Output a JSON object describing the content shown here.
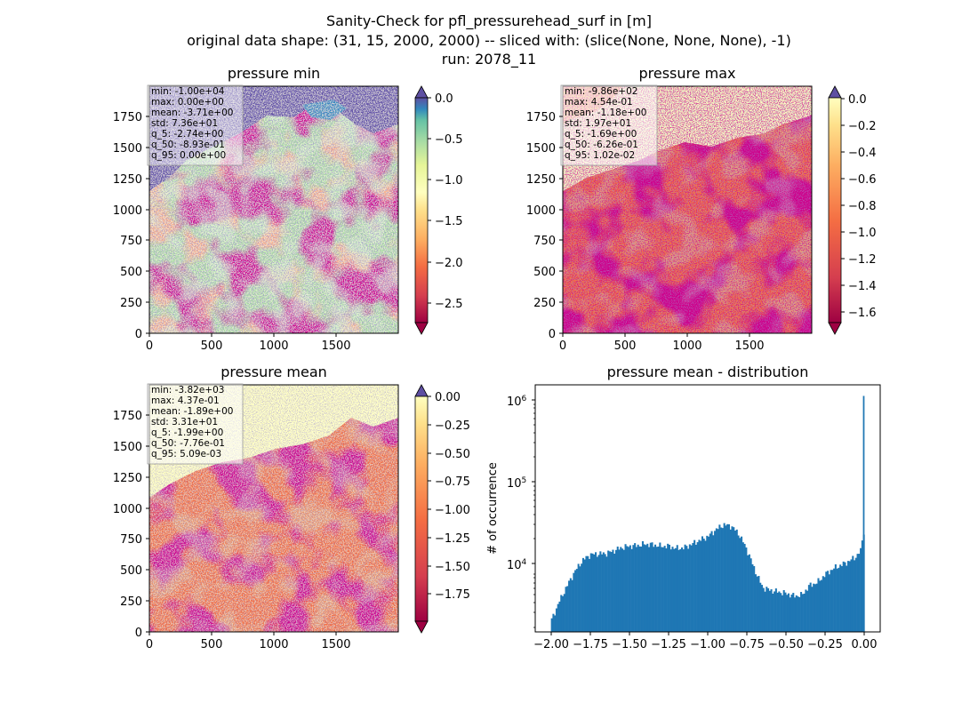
{
  "figure": {
    "title_lines": [
      "Sanity-Check for pfl_pressurehead_surf in [m]",
      "original data shape: (31, 15, 2000, 2000) -- sliced with: (slice(None, None, None), -1)",
      "run: 2078_11"
    ]
  },
  "colors": {
    "red": "#9e0142",
    "orange": "#f46d43",
    "yellow": "#ffffbf",
    "green": "#abdda4",
    "blue": "#3288bd",
    "purple": "#5e4fa2",
    "hist": "#1f77b4"
  },
  "panels": {
    "min": {
      "title": "pressure min",
      "xticks": [
        "0",
        "500",
        "1000",
        "1500"
      ],
      "yticks": [
        "0",
        "250",
        "500",
        "750",
        "1000",
        "1250",
        "1500",
        "1750"
      ],
      "stats": [
        "min: -1.00e+04",
        "max: 0.00e+00",
        "mean: -3.71e+00",
        "std: 7.36e+01",
        "q_5: -2.74e+00",
        "q_50: -8.93e-01",
        "q_95: 0.00e+00"
      ],
      "colorbar": {
        "ticks": [
          "0.0",
          "−0.5",
          "−1.0",
          "−1.5",
          "−2.0",
          "−2.5"
        ],
        "range": [
          -2.74,
          0.0
        ],
        "extend": "both"
      }
    },
    "max": {
      "title": "pressure max",
      "xticks": [
        "0",
        "500",
        "1000",
        "1500"
      ],
      "yticks": [
        "0",
        "250",
        "500",
        "750",
        "1000",
        "1250",
        "1500",
        "1750"
      ],
      "stats": [
        "min: -9.86e+02",
        "max: 4.54e-01",
        "mean: -1.18e+00",
        "std: 1.97e+01",
        "q_5: -1.69e+00",
        "q_50: -6.26e-01",
        "q_95: 1.02e-02"
      ],
      "colorbar": {
        "ticks": [
          "0.0",
          "−0.2",
          "−0.4",
          "−0.6",
          "−0.8",
          "−1.0",
          "−1.2",
          "−1.4",
          "−1.6"
        ],
        "range": [
          -1.69,
          0.0
        ],
        "extend": "both"
      }
    },
    "mean": {
      "title": "pressure mean",
      "xticks": [
        "0",
        "500",
        "1000",
        "1500"
      ],
      "yticks": [
        "0",
        "250",
        "500",
        "750",
        "1000",
        "1250",
        "1500",
        "1750"
      ],
      "stats": [
        "min: -3.82e+03",
        "max: 4.37e-01",
        "mean: -1.89e+00",
        "std: 3.31e+01",
        "q_5: -1.99e+00",
        "q_50: -7.76e-01",
        "q_95: 5.09e-03"
      ],
      "colorbar": {
        "ticks": [
          "0.00",
          "−0.25",
          "−0.50",
          "−0.75",
          "−1.00",
          "−1.25",
          "−1.50",
          "−1.75"
        ],
        "range": [
          -1.99,
          0.0
        ],
        "extend": "both"
      }
    },
    "hist": {
      "title": "pressure mean - distribution",
      "ylabel": "# of occurrence",
      "xtick_labels": [
        "−2.00",
        "−1.75",
        "−1.50",
        "−1.25",
        "−1.00",
        "−0.75",
        "−0.50",
        "−0.25",
        "0.00"
      ],
      "ytick_labels": {
        "1e4": "10^4",
        "1e5": "10^5",
        "1e6": "10^6"
      }
    }
  },
  "chart_data": [
    {
      "type": "heatmap",
      "title": "pressure min",
      "xlim": [
        0,
        2000
      ],
      "ylim": [
        0,
        2000
      ],
      "colormap": "Spectral",
      "clim": [
        -2.74,
        0.0
      ]
    },
    {
      "type": "heatmap",
      "title": "pressure max",
      "xlim": [
        0,
        2000
      ],
      "ylim": [
        0,
        2000
      ],
      "colormap": "Spectral",
      "clim": [
        -1.69,
        0.0
      ]
    },
    {
      "type": "heatmap",
      "title": "pressure mean",
      "xlim": [
        0,
        2000
      ],
      "ylim": [
        0,
        2000
      ],
      "colormap": "Spectral",
      "clim": [
        -1.99,
        0.0
      ]
    },
    {
      "type": "bar",
      "title": "pressure mean - distribution",
      "xlabel": "",
      "ylabel": "# of occurrence",
      "yscale": "log",
      "xlim": [
        -2.1,
        0.1
      ],
      "ylim": [
        1500,
        1500000
      ],
      "bin_width": 0.01,
      "bin_start": -2.0,
      "knots_x": [
        -2.0,
        -1.95,
        -1.9,
        -1.85,
        -1.8,
        -1.75,
        -1.7,
        -1.65,
        -1.6,
        -1.55,
        -1.5,
        -1.45,
        -1.4,
        -1.35,
        -1.3,
        -1.25,
        -1.2,
        -1.15,
        -1.1,
        -1.05,
        -1.0,
        -0.95,
        -0.9,
        -0.85,
        -0.8,
        -0.75,
        -0.7,
        -0.65,
        -0.6,
        -0.55,
        -0.5,
        -0.45,
        -0.4,
        -0.35,
        -0.3,
        -0.25,
        -0.2,
        -0.15,
        -0.1,
        -0.05,
        -0.02,
        -0.01
      ],
      "knots_y": [
        2000,
        3400,
        5300,
        8000,
        11000,
        13000,
        13300,
        13400,
        14500,
        15800,
        16500,
        16800,
        17500,
        17200,
        16500,
        16500,
        15500,
        15800,
        17500,
        19500,
        21500,
        26000,
        30000,
        29000,
        23000,
        15000,
        8500,
        5200,
        4800,
        4600,
        4400,
        4100,
        4200,
        5500,
        6000,
        7500,
        8800,
        9700,
        10800,
        12500,
        15000,
        25000
      ],
      "peak": {
        "x": 0.0,
        "value": 1100000
      }
    }
  ]
}
